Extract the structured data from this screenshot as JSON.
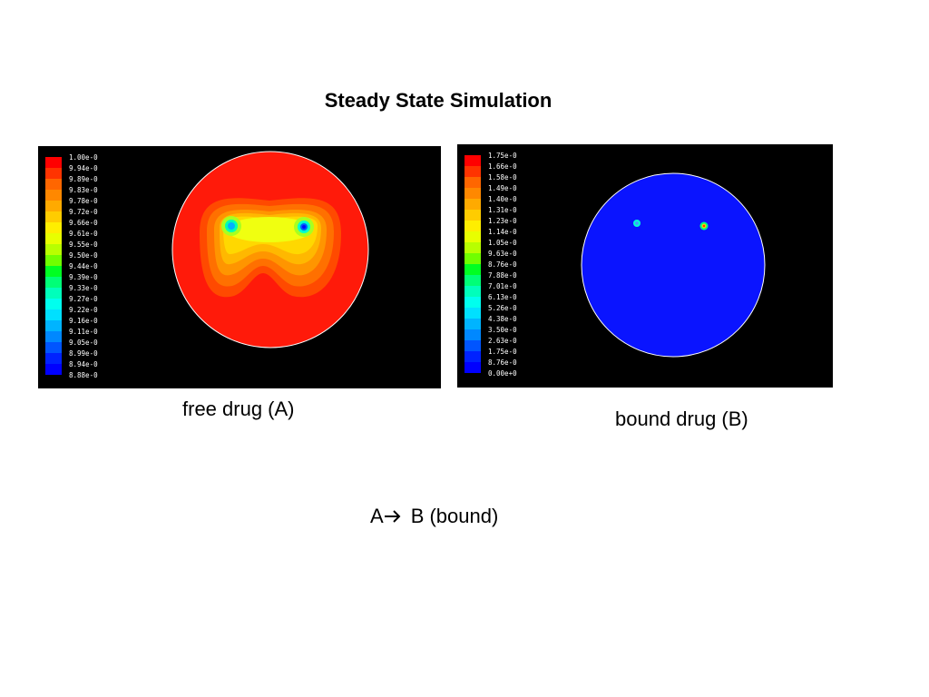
{
  "slide": {
    "title": "Steady State Simulation",
    "caption_a": "free drug (A)",
    "caption_b": "bound drug (B)",
    "reaction": {
      "reactant": "A",
      "product": "B (bound)"
    }
  },
  "colors": {
    "panel_background": "#000000",
    "free_drug_field": "#ff1a0a",
    "bound_drug_field": "#0a14ff",
    "boundary": "#ffffff"
  },
  "legend_colors": [
    "#ff0000",
    "#ff3300",
    "#ff6600",
    "#ff8800",
    "#ffaa00",
    "#ffcc00",
    "#ffee00",
    "#e8ff00",
    "#b8ff00",
    "#70ff00",
    "#00ff22",
    "#00ff77",
    "#00ffbb",
    "#00ffee",
    "#00e0ff",
    "#00b4ff",
    "#0088ff",
    "#0055ff",
    "#0022ff",
    "#0000ff"
  ],
  "legend_a": [
    "1.00e-0",
    "9.94e-0",
    "9.89e-0",
    "9.83e-0",
    "9.78e-0",
    "9.72e-0",
    "9.66e-0",
    "9.61e-0",
    "9.55e-0",
    "9.50e-0",
    "9.44e-0",
    "9.39e-0",
    "9.33e-0",
    "9.27e-0",
    "9.22e-0",
    "9.16e-0",
    "9.11e-0",
    "9.05e-0",
    "8.99e-0",
    "8.94e-0",
    "8.88e-0"
  ],
  "legend_b": [
    "1.75e-0",
    "1.66e-0",
    "1.58e-0",
    "1.49e-0",
    "1.40e-0",
    "1.31e-0",
    "1.23e-0",
    "1.14e-0",
    "1.05e-0",
    "9.63e-0",
    "8.76e-0",
    "7.88e-0",
    "7.01e-0",
    "6.13e-0",
    "5.26e-0",
    "4.38e-0",
    "3.50e-0",
    "2.63e-0",
    "1.75e-0",
    "8.76e-0",
    "0.00e+0"
  ]
}
